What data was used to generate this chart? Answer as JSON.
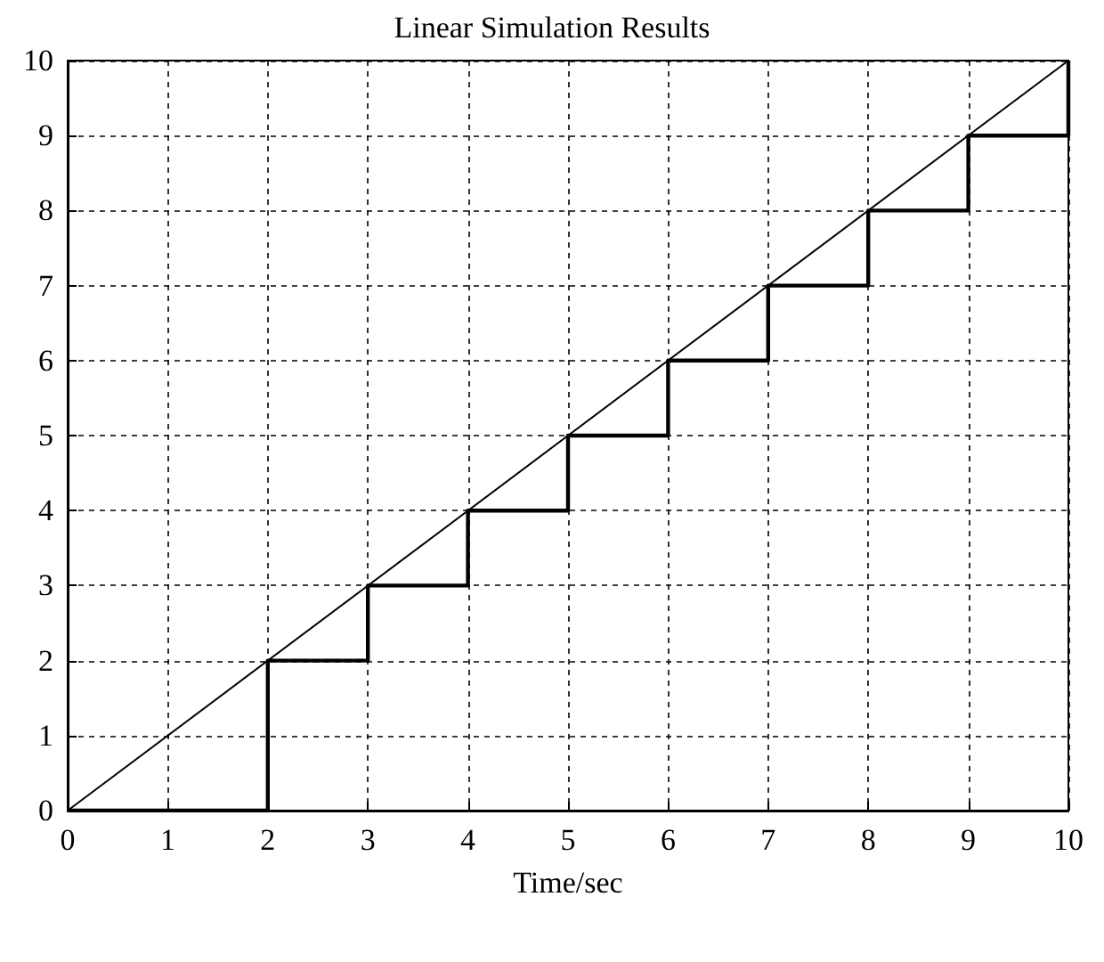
{
  "chart_data": {
    "type": "line",
    "title": "Linear Simulation Results",
    "xlabel": "Time/sec",
    "xlim": [
      0,
      10
    ],
    "xticks": [
      0,
      1,
      2,
      3,
      4,
      5,
      6,
      7,
      8,
      9,
      10
    ],
    "ylim": [
      0,
      10
    ],
    "yticks": [
      0,
      1,
      2,
      3,
      4,
      5,
      6,
      7,
      8,
      9,
      10
    ],
    "grid": true,
    "series": [
      {
        "type": "step",
        "color": "#000000",
        "x": [
          0,
          1,
          2,
          3,
          4,
          5,
          6,
          7,
          8,
          9,
          10
        ],
        "values": [
          0,
          0,
          2,
          3,
          4,
          5,
          6,
          7,
          8,
          9,
          10
        ]
      },
      {
        "color": "#000000",
        "x": [
          0,
          10
        ],
        "values": [
          0,
          10
        ]
      }
    ]
  }
}
